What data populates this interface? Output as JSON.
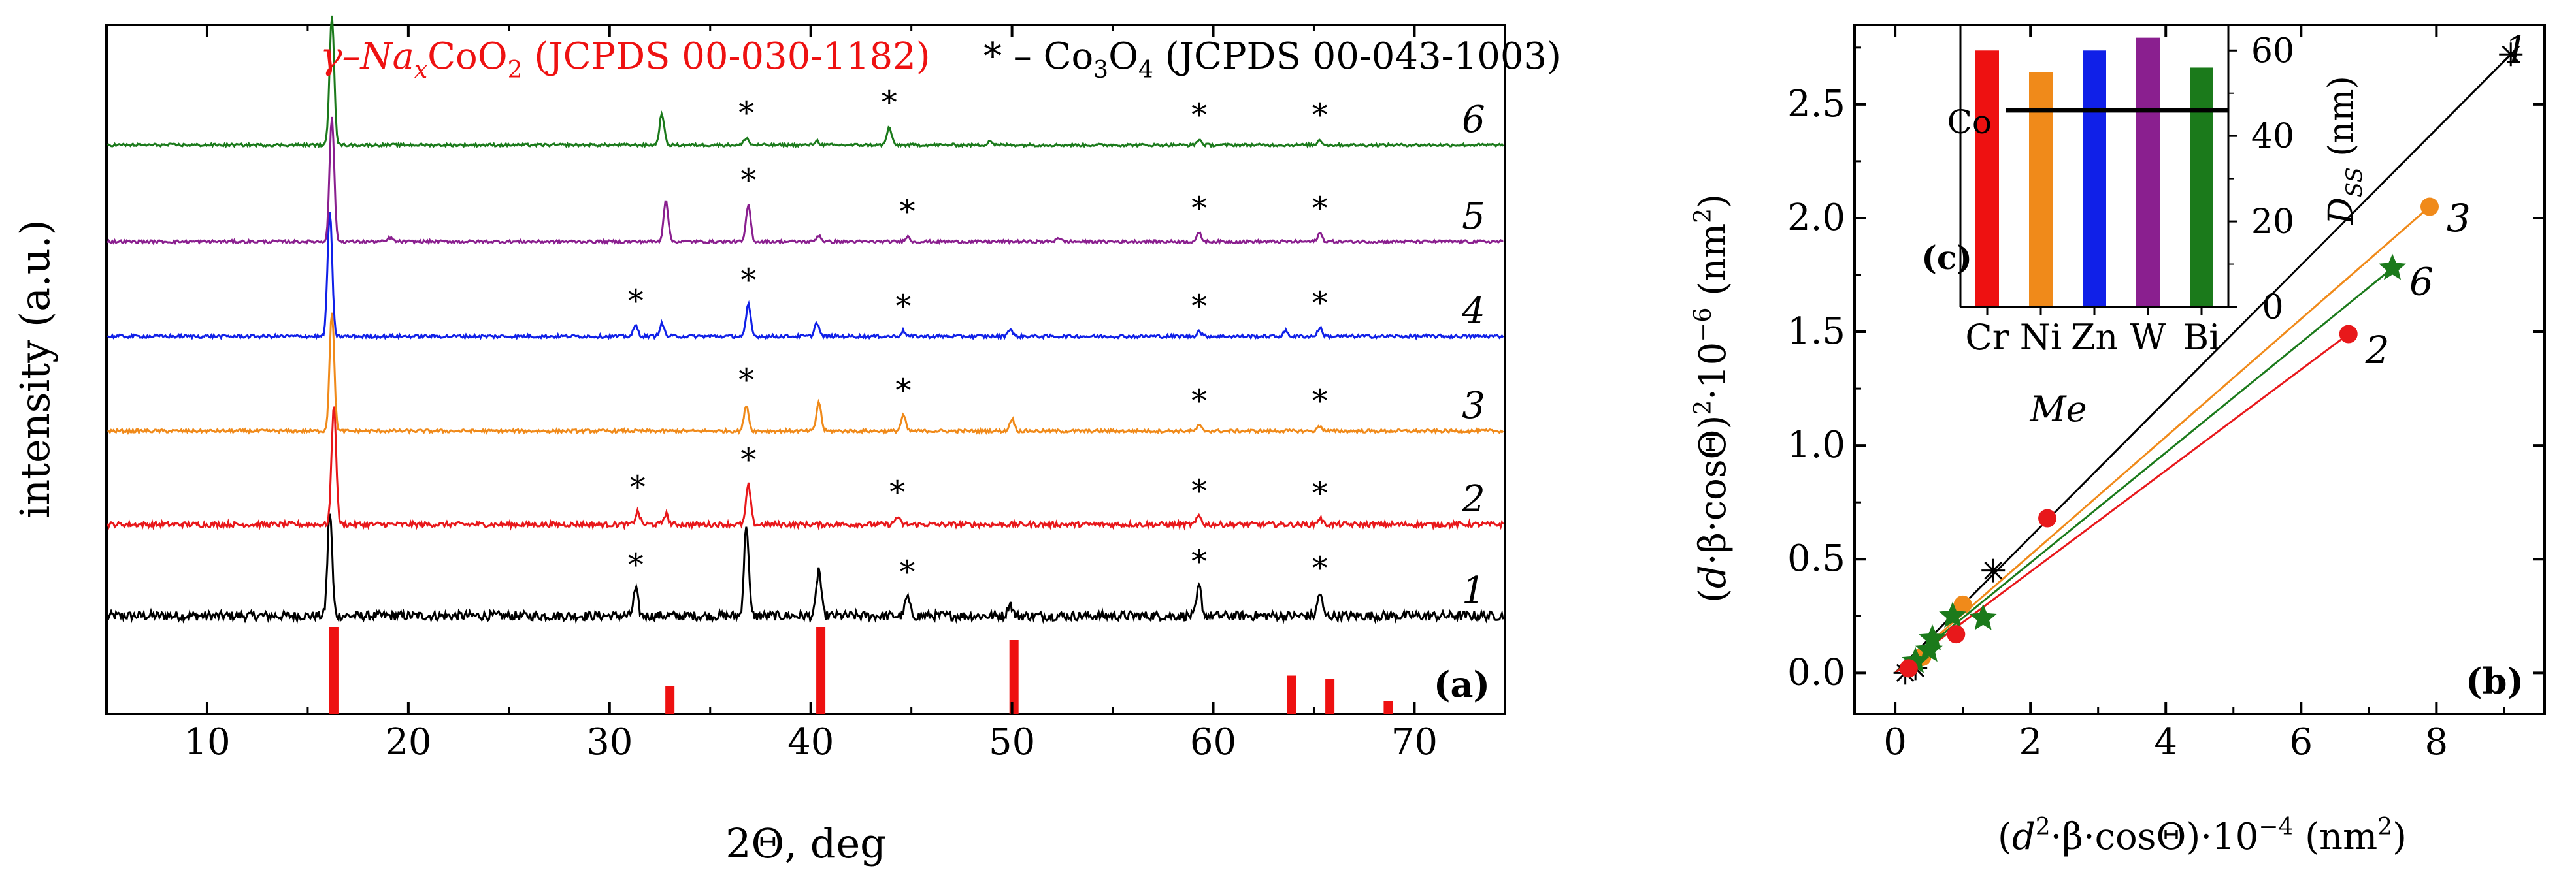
{
  "chart_data": [
    {
      "id": "a",
      "type": "line",
      "panel_label": "(a)",
      "xlabel": "2Θ, deg",
      "ylabel": "intensity (a.u.)",
      "xlim": [
        5,
        74.5
      ],
      "xticks": [
        10,
        20,
        30,
        40,
        50,
        60,
        70
      ],
      "legend": {
        "main_phase": "γ–Na",
        "main_phase_sub": "x",
        "main_phase_mid": "CoO",
        "main_phase_sub2": "2",
        "main_phase_ref": " (JCPDS 00-030-1182)",
        "star_text": "* – Co",
        "star_sub1": "3",
        "star_mid": "O",
        "star_sub2": "4",
        "star_ref": " (JCPDS 00-043-1003)"
      },
      "series": [
        {
          "name": "1",
          "color": "#000000",
          "offset": 0,
          "noise": 1.0,
          "peaks": [
            [
              16.1,
              1.0
            ],
            [
              31.3,
              0.25
            ],
            [
              36.8,
              0.88
            ],
            [
              40.4,
              0.45
            ],
            [
              44.8,
              0.18
            ],
            [
              49.9,
              0.12
            ],
            [
              59.3,
              0.28
            ],
            [
              65.3,
              0.22
            ]
          ],
          "stars": [
            31.3,
            44.8,
            59.3,
            65.3
          ]
        },
        {
          "name": "2",
          "color": "#e8181b",
          "offset": 1,
          "noise": 0.55,
          "peaks": [
            [
              16.3,
              1.15
            ],
            [
              31.4,
              0.12
            ],
            [
              32.8,
              0.1
            ],
            [
              36.9,
              0.38
            ],
            [
              44.3,
              0.07
            ],
            [
              59.3,
              0.08
            ],
            [
              65.3,
              0.06
            ]
          ],
          "stars": [
            31.4,
            36.9,
            44.3,
            59.3,
            65.3
          ]
        },
        {
          "name": "3",
          "color": "#f08a1a",
          "offset": 2,
          "noise": 0.35,
          "peaks": [
            [
              16.2,
              1.15
            ],
            [
              36.8,
              0.25
            ],
            [
              40.4,
              0.28
            ],
            [
              44.6,
              0.15
            ],
            [
              50.0,
              0.12
            ],
            [
              59.3,
              0.05
            ],
            [
              65.3,
              0.05
            ]
          ],
          "stars": [
            36.8,
            44.6,
            59.3,
            65.3
          ]
        },
        {
          "name": "4",
          "color": "#1020e8",
          "offset": 3,
          "noise": 0.35,
          "peaks": [
            [
              16.1,
              1.2
            ],
            [
              31.3,
              0.1
            ],
            [
              32.6,
              0.12
            ],
            [
              36.9,
              0.3
            ],
            [
              40.3,
              0.13
            ],
            [
              44.6,
              0.05
            ],
            [
              49.9,
              0.07
            ],
            [
              59.3,
              0.05
            ],
            [
              63.6,
              0.05
            ],
            [
              65.3,
              0.08
            ]
          ],
          "stars": [
            31.3,
            36.9,
            44.6,
            59.3,
            65.3
          ]
        },
        {
          "name": "5",
          "color": "#8a1f8f",
          "offset": 4,
          "noise": 0.3,
          "peaks": [
            [
              16.2,
              1.2
            ],
            [
              19.1,
              0.04
            ],
            [
              32.8,
              0.4
            ],
            [
              36.9,
              0.35
            ],
            [
              40.4,
              0.06
            ],
            [
              44.8,
              0.05
            ],
            [
              52.3,
              0.04
            ],
            [
              59.3,
              0.08
            ],
            [
              65.3,
              0.08
            ]
          ],
          "stars": [
            36.9,
            44.8,
            59.3,
            65.3
          ]
        },
        {
          "name": "6",
          "color": "#1b7a1b",
          "offset": 5,
          "noise": 0.3,
          "peaks": [
            [
              16.2,
              1.25
            ],
            [
              32.6,
              0.3
            ],
            [
              36.8,
              0.07
            ],
            [
              40.3,
              0.04
            ],
            [
              43.9,
              0.17
            ],
            [
              48.9,
              0.04
            ],
            [
              59.3,
              0.05
            ],
            [
              65.3,
              0.05
            ]
          ],
          "stars": [
            36.8,
            43.9,
            59.3,
            65.3
          ]
        }
      ],
      "reference_lines": {
        "color": "#ee1111",
        "positions": [
          16.3,
          33.0,
          40.5,
          50.1,
          63.9,
          65.8,
          68.7
        ],
        "heights": [
          1.0,
          0.32,
          1.0,
          0.85,
          0.44,
          0.4,
          0.15
        ]
      }
    },
    {
      "id": "b",
      "type": "scatter",
      "panel_label": "(b)",
      "xlabel": "(d²·β·cosΘ)·10⁻⁴ (nm²)",
      "ylabel": "(d·β·cosΘ)²·10⁻⁶ (nm²)",
      "xlabel_parts": {
        "open": "(",
        "d": "d",
        "sup2": "2",
        "mid": "·β·cosΘ)·10",
        "exp": "−4",
        "unit": " (nm",
        "unit_sup": "2",
        "close": ")"
      },
      "ylabel_parts": {
        "open": "(",
        "d": "d",
        "mid": "·β·cosΘ)",
        "sup2": "2",
        "dot10": "·10",
        "exp": "−6",
        "unit": " (nm",
        "unit_sup": "2",
        "close": ")"
      },
      "xlim": [
        -0.6,
        9.6
      ],
      "ylim": [
        -0.18,
        2.85
      ],
      "xticks": [
        0,
        2,
        4,
        6,
        8
      ],
      "yticks": [
        0.0,
        0.5,
        1.0,
        1.5,
        2.0,
        2.5
      ],
      "series": [
        {
          "name": "1",
          "color": "#000000",
          "marker": "asterisk",
          "points": [
            [
              0.15,
              0.0
            ],
            [
              0.3,
              0.02
            ],
            [
              1.45,
              0.45
            ],
            [
              9.1,
              2.72
            ]
          ],
          "fit": [
            [
              0.0,
              0.0
            ],
            [
              9.1,
              2.72
            ]
          ],
          "label_at": [
            9.0,
            2.74
          ]
        },
        {
          "name": "3",
          "color": "#f08a1a",
          "marker": "circle",
          "points": [
            [
              0.2,
              0.02
            ],
            [
              0.4,
              0.07
            ],
            [
              1.0,
              0.3
            ],
            [
              7.9,
              2.05
            ]
          ],
          "fit": [
            [
              0.0,
              0.0
            ],
            [
              7.9,
              2.05
            ]
          ],
          "label_at": [
            8.15,
            2.0
          ]
        },
        {
          "name": "6",
          "color": "#1b7a1b",
          "marker": "star",
          "points": [
            [
              0.3,
              0.05
            ],
            [
              0.5,
              0.1
            ],
            [
              0.55,
              0.15
            ],
            [
              0.85,
              0.25
            ],
            [
              1.3,
              0.24
            ],
            [
              7.35,
              1.78
            ]
          ],
          "fit": [
            [
              0.0,
              0.0
            ],
            [
              7.35,
              1.78
            ]
          ],
          "label_at": [
            7.6,
            1.72
          ]
        },
        {
          "name": "2",
          "color": "#e8181b",
          "marker": "circle",
          "points": [
            [
              0.2,
              0.02
            ],
            [
              0.9,
              0.17
            ],
            [
              2.25,
              0.68
            ],
            [
              6.7,
              1.49
            ]
          ],
          "fit": [
            [
              0.0,
              0.0
            ],
            [
              6.7,
              1.49
            ]
          ],
          "label_at": [
            6.95,
            1.42
          ]
        }
      ]
    },
    {
      "id": "c",
      "type": "bar",
      "panel_label": "(c)",
      "categories": [
        "Cr",
        "Ni",
        "Zn",
        "W",
        "Bi"
      ],
      "values": [
        60,
        55,
        60,
        63,
        56
      ],
      "colors": [
        "#ee1111",
        "#f08a1a",
        "#1020e8",
        "#8a1f8f",
        "#1b7a1b"
      ],
      "reference": {
        "label": "Co",
        "value": 46
      },
      "xlabel": "Me",
      "ylabel": "D",
      "ylabel_sub": "SS",
      "ylabel_unit": " (nm)",
      "ylim": [
        0,
        66
      ],
      "yticks": [
        0,
        20,
        40,
        60
      ]
    }
  ]
}
